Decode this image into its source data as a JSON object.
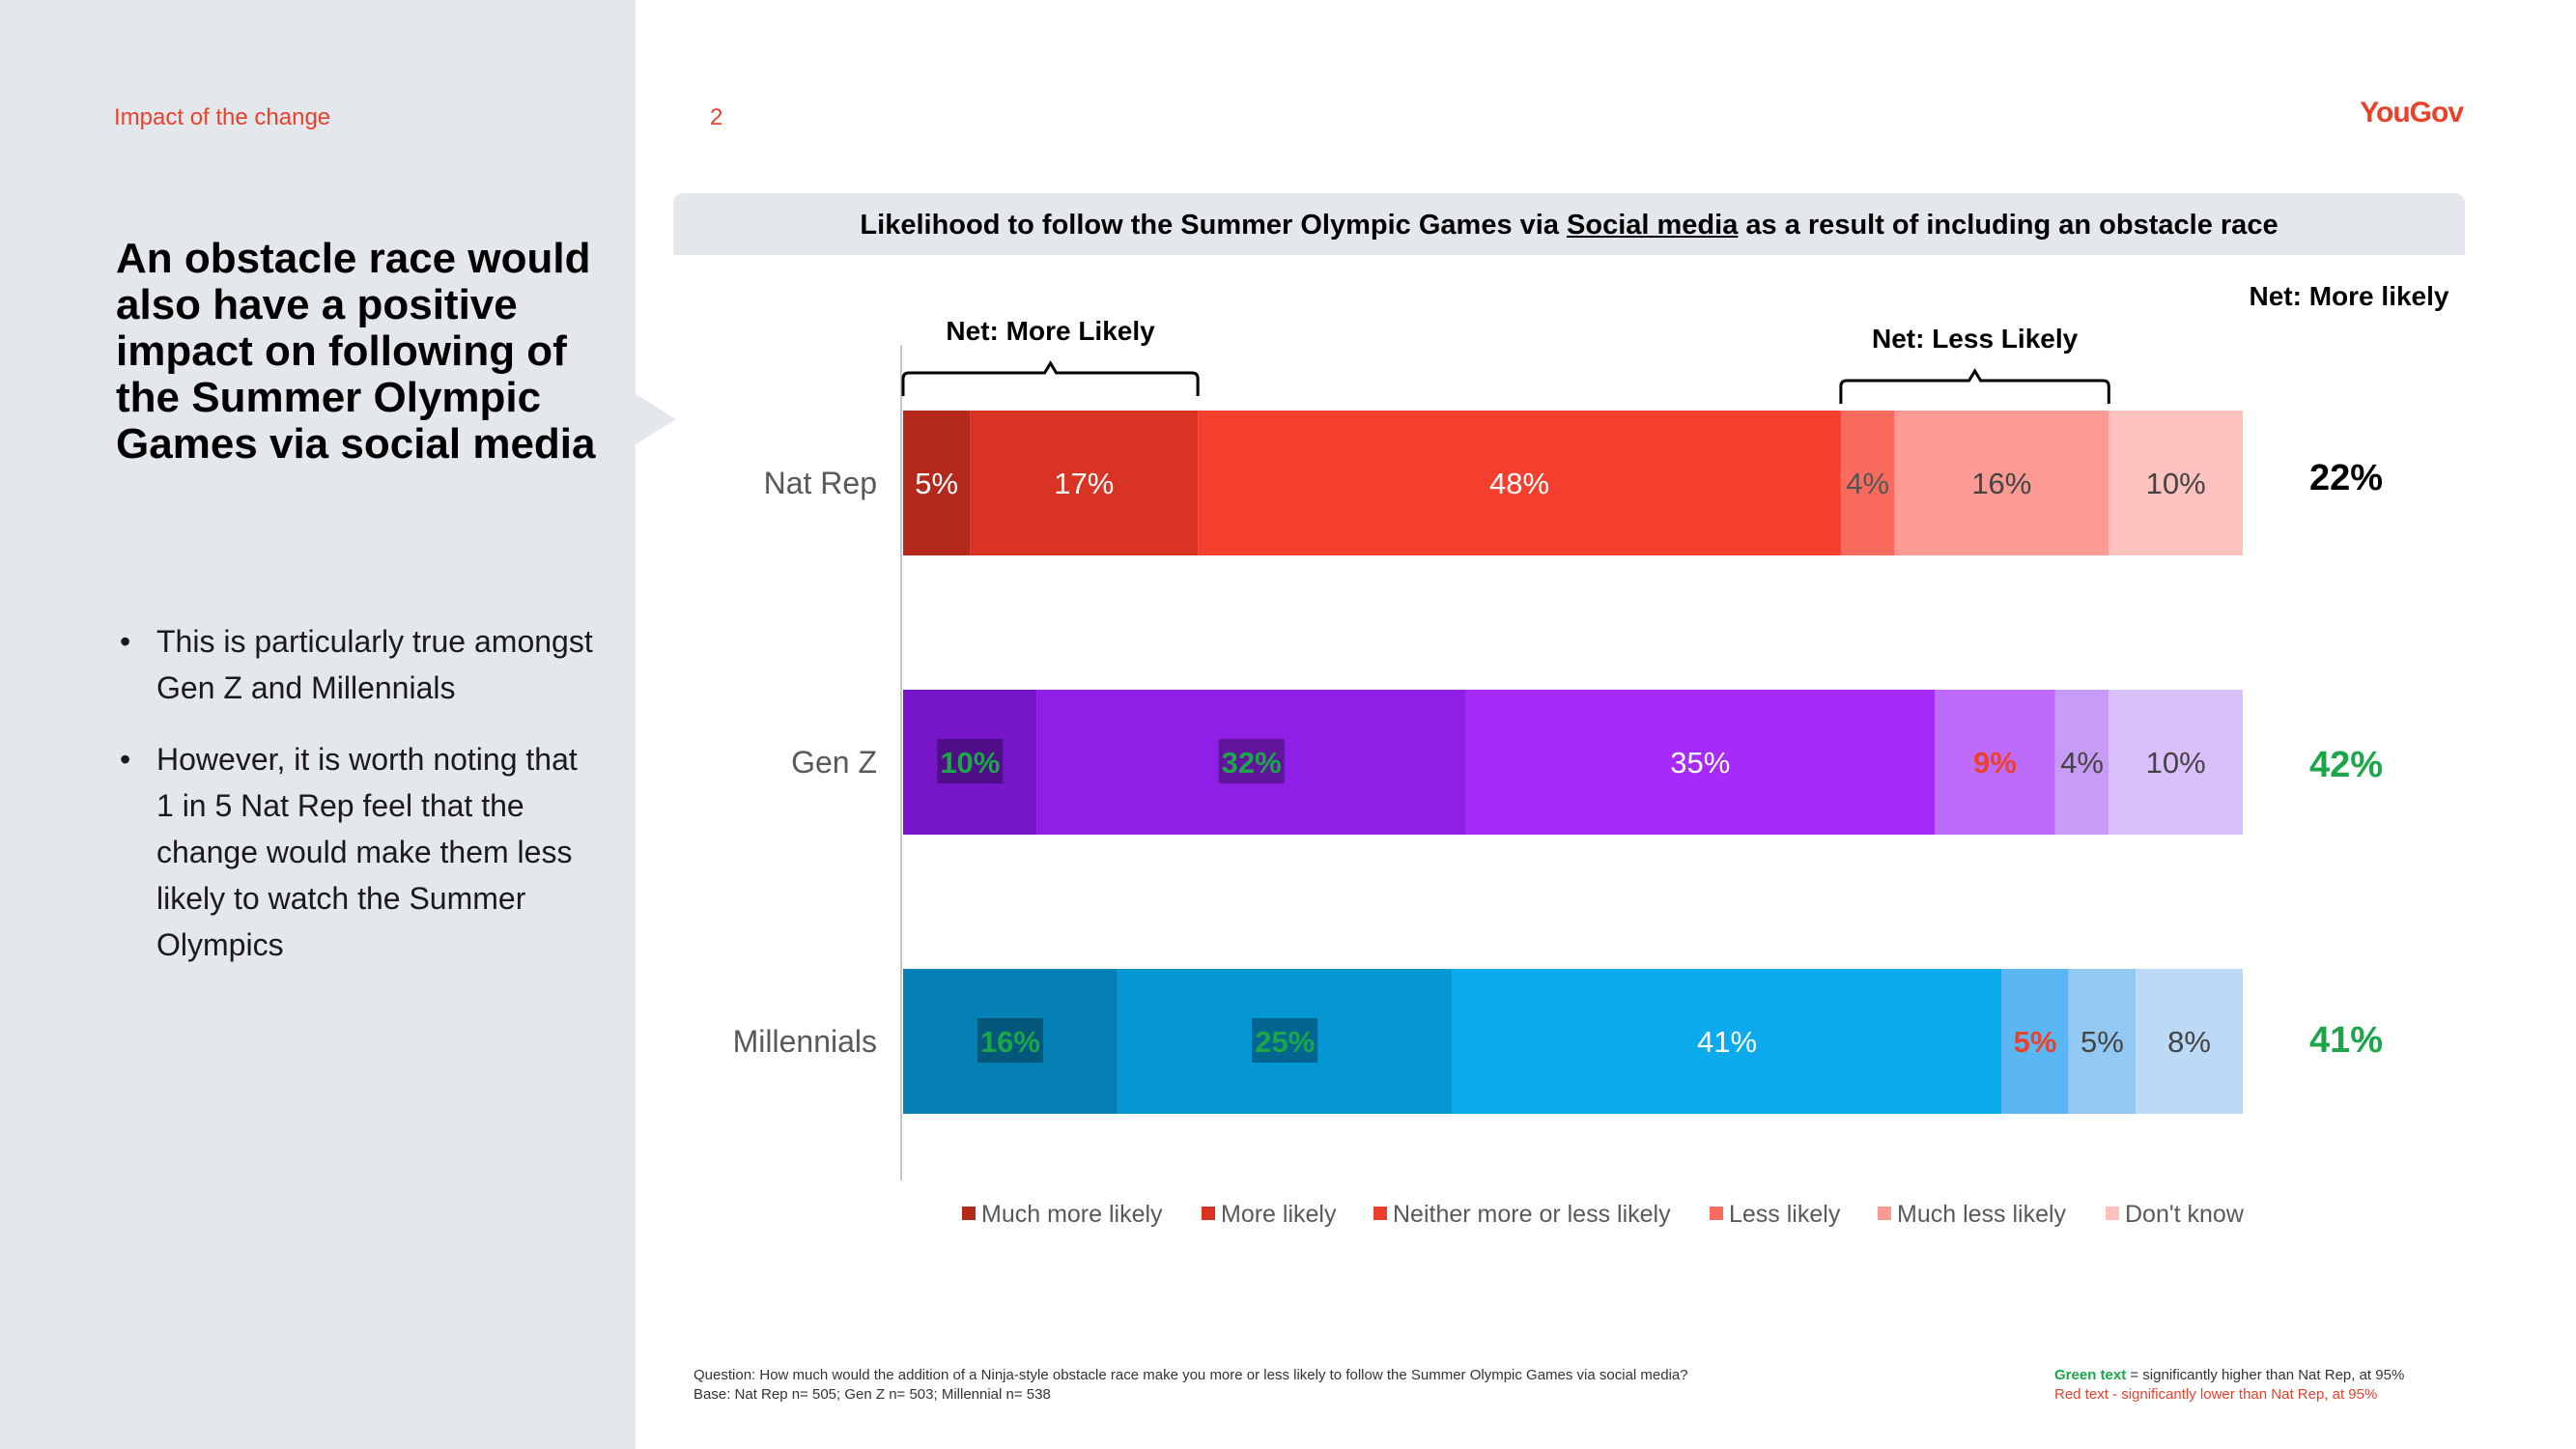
{
  "section_label": "Impact of the change",
  "page_number": "2",
  "logo": "YouGov",
  "headline": "An obstacle race would also have a positive impact on following of the Summer Olympic Games via social media",
  "bullets": [
    "This is particularly true amongst Gen Z and Millennials",
    "However, it is worth noting that 1 in 5 Nat Rep feel that the change would make them less likely to watch the Summer Olympics"
  ],
  "chart_title": {
    "before": "Likelihood to follow the Summer Olympic Games via ",
    "underlined": "Social media",
    "after": " as a result of including an obstacle race"
  },
  "chart_data": {
    "type": "bar",
    "orientation": "horizontal-stacked-100",
    "title": "Likelihood to follow the Summer Olympic Games via Social media as a result of including an obstacle race",
    "categories": [
      "Nat Rep",
      "Gen Z",
      "Millennials"
    ],
    "series_names": [
      "Much more likely",
      "More likely",
      "Neither more or less likely",
      "Less likely",
      "Much less likely",
      "Don't know"
    ],
    "legend_colors": [
      "#b5291d",
      "#d93423",
      "#f03c2e",
      "#fb6b5d",
      "#fc9a93",
      "#fdc2be"
    ],
    "rows": [
      {
        "name": "Nat Rep",
        "values": [
          5,
          17,
          48,
          4,
          16,
          10
        ],
        "colors": [
          "#b5291d",
          "#d93423",
          "#f43f2e",
          "#fb6b5d",
          "#fc9a93",
          "#fdc2be"
        ],
        "label_colors": [
          "#ffffff",
          "#ffffff",
          "#ffffff",
          "#555555",
          "#444444",
          "#444444"
        ],
        "label_weights": [
          "normal",
          "normal",
          "normal",
          "normal",
          "normal",
          "normal"
        ],
        "highlight": [
          false,
          false,
          false,
          false,
          false,
          false
        ]
      },
      {
        "name": "Gen Z",
        "values": [
          10,
          32,
          35,
          9,
          4,
          10
        ],
        "colors": [
          "#7516c8",
          "#8f1fe6",
          "#a62af9",
          "#be6bfb",
          "#c79cf7",
          "#d9c0fc"
        ],
        "label_colors": [
          "#1ca64a",
          "#1ca64a",
          "#ffffff",
          "#e8412c",
          "#444444",
          "#444444"
        ],
        "label_weights": [
          "bold",
          "bold",
          "normal",
          "bold",
          "normal",
          "normal"
        ],
        "highlight": [
          true,
          true,
          false,
          false,
          false,
          false
        ]
      },
      {
        "name": "Millennials",
        "values": [
          16,
          25,
          41,
          5,
          5,
          8
        ],
        "colors": [
          "#0580b4",
          "#0596d4",
          "#0aaaec",
          "#5bb7f3",
          "#92c8f2",
          "#bcdaf6"
        ],
        "label_colors": [
          "#1ca64a",
          "#1ca64a",
          "#ffffff",
          "#e8412c",
          "#444444",
          "#444444"
        ],
        "label_weights": [
          "bold",
          "bold",
          "normal",
          "bold",
          "normal",
          "normal"
        ],
        "highlight": [
          true,
          true,
          false,
          false,
          false,
          false
        ]
      }
    ],
    "net_more_likely_header": "Net: More likely",
    "net_more_likely": [
      {
        "value": "22%",
        "color": "#000000"
      },
      {
        "value": "42%",
        "color": "#1ca64a"
      },
      {
        "value": "41%",
        "color": "#1ca64a"
      }
    ],
    "bracket_more": {
      "label": "Net: More Likely",
      "from_index": 0,
      "to_index": 1
    },
    "bracket_less": {
      "label": "Net: Less Likely",
      "from_index": 3,
      "to_index": 4
    }
  },
  "footnote": {
    "question": "Question: How much would the addition of a Ninja-style obstacle race make you more or less likely to follow the Summer Olympic Games via social media?",
    "base": " Base: Nat Rep n= 505; Gen Z n= 503; Millennial n= 538"
  },
  "significance": {
    "green_label": "Green text",
    "green_rest": " = significantly higher than Nat Rep, at 95%",
    "red_text": "Red text - significantly lower than Nat Rep, at 95%"
  }
}
